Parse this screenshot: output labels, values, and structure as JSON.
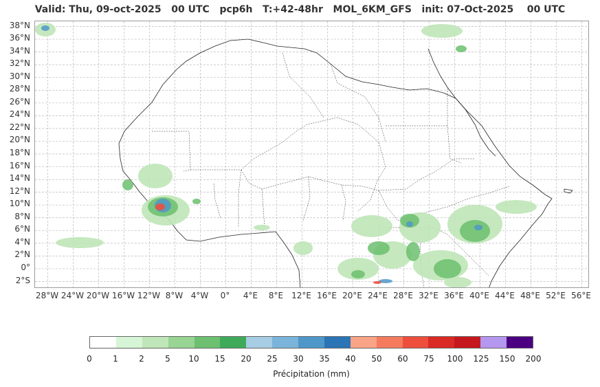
{
  "title": "Valid: Thu, 09-oct-2025   00 UTC   pcp6h   T:+42-48hr   MOL_6KM_GFS   init: 07-Oct-2025    00 UTC",
  "map": {
    "lat_labels": [
      "38°N",
      "36°N",
      "34°N",
      "32°N",
      "30°N",
      "28°N",
      "26°N",
      "24°N",
      "22°N",
      "20°N",
      "18°N",
      "16°N",
      "14°N",
      "12°N",
      "10°N",
      "8°N",
      "6°N",
      "4°N",
      "2°N",
      "0°",
      "2°S"
    ],
    "lon_labels": [
      "28°W",
      "24°W",
      "20°W",
      "16°W",
      "12°W",
      "8°W",
      "4°W",
      "0°",
      "4°E",
      "8°E",
      "12°E",
      "16°E",
      "20°E",
      "24°E",
      "28°E",
      "32°E",
      "36°E",
      "40°E",
      "44°E",
      "48°E",
      "52°E",
      "56°E"
    ]
  },
  "colorbar": {
    "label": "Précipitation (mm)",
    "ticks": [
      "0",
      "1",
      "2",
      "5",
      "10",
      "15",
      "20",
      "25",
      "30",
      "35",
      "40",
      "50",
      "60",
      "75",
      "100",
      "125",
      "150",
      "200"
    ],
    "colors": [
      "#ffffff",
      "#d6f5d6",
      "#bfe6b8",
      "#98d493",
      "#6cc06f",
      "#3faa5a",
      "#a6cde3",
      "#7ab4da",
      "#4f97c8",
      "#2b74b5",
      "#f9a486",
      "#f57b5e",
      "#ee4f3d",
      "#d92a25",
      "#c4181e",
      "#b497ee",
      "#4b0082"
    ]
  }
}
